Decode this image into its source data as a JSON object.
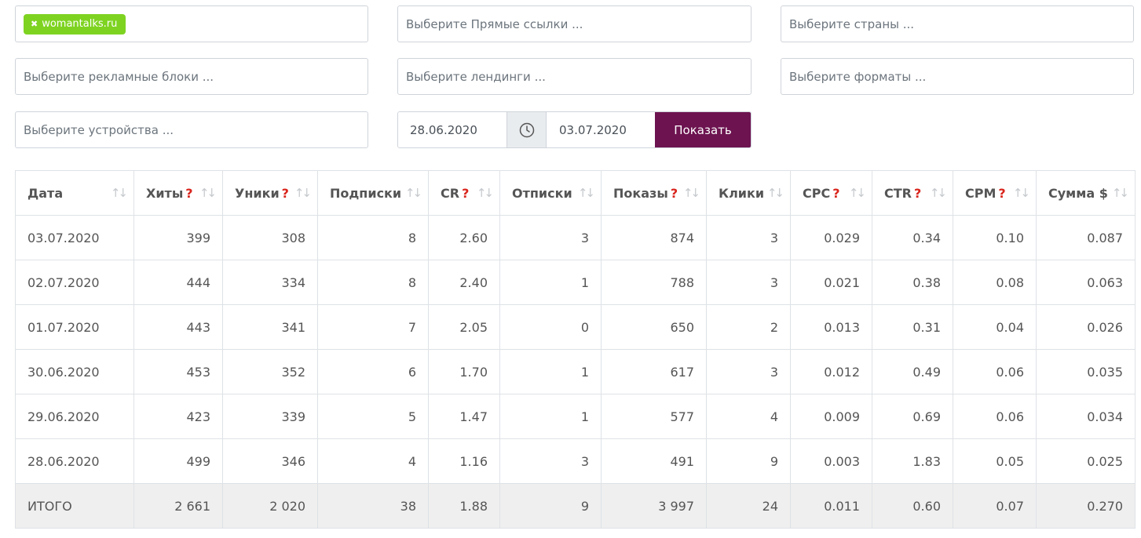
{
  "filters": {
    "site_tag": "womantalks.ru",
    "direct_links_placeholder": "Выберите Прямые ссылки ...",
    "countries_placeholder": "Выберите страны ...",
    "ad_blocks_placeholder": "Выберите рекламные блоки ...",
    "landings_placeholder": "Выберите лендинги ...",
    "formats_placeholder": "Выберите форматы ...",
    "devices_placeholder": "Выберите устройства ...",
    "date_from": "28.06.2020",
    "date_to": "03.07.2020",
    "show_label": "Показать"
  },
  "table": {
    "headers": [
      {
        "label": "Дата",
        "hint": ""
      },
      {
        "label": "Хиты",
        "hint": "?"
      },
      {
        "label": "Уники",
        "hint": "?"
      },
      {
        "label": "Подписки",
        "hint": ""
      },
      {
        "label": "CR",
        "hint": "?"
      },
      {
        "label": "Отписки",
        "hint": ""
      },
      {
        "label": "Показы",
        "hint": "?"
      },
      {
        "label": "Клики",
        "hint": ""
      },
      {
        "label": "CPC",
        "hint": "?"
      },
      {
        "label": "CTR",
        "hint": "?"
      },
      {
        "label": "CPM",
        "hint": "?"
      },
      {
        "label": "Сумма $",
        "hint": ""
      }
    ],
    "sort_icon": "sort-icon",
    "rows": [
      [
        "03.07.2020",
        "399",
        "308",
        "8",
        "2.60",
        "3",
        "874",
        "3",
        "0.029",
        "0.34",
        "0.10",
        "0.087"
      ],
      [
        "02.07.2020",
        "444",
        "334",
        "8",
        "2.40",
        "1",
        "788",
        "3",
        "0.021",
        "0.38",
        "0.08",
        "0.063"
      ],
      [
        "01.07.2020",
        "443",
        "341",
        "7",
        "2.05",
        "0",
        "650",
        "2",
        "0.013",
        "0.31",
        "0.04",
        "0.026"
      ],
      [
        "30.06.2020",
        "453",
        "352",
        "6",
        "1.70",
        "1",
        "617",
        "3",
        "0.012",
        "0.49",
        "0.06",
        "0.035"
      ],
      [
        "29.06.2020",
        "423",
        "339",
        "5",
        "1.47",
        "1",
        "577",
        "4",
        "0.009",
        "0.69",
        "0.06",
        "0.034"
      ],
      [
        "28.06.2020",
        "499",
        "346",
        "4",
        "1.16",
        "3",
        "491",
        "9",
        "0.003",
        "1.83",
        "0.05",
        "0.025"
      ]
    ],
    "total": [
      "ИТОГО",
      "2 661",
      "2 020",
      "38",
      "1.88",
      "9",
      "3 997",
      "24",
      "0.011",
      "0.60",
      "0.07",
      "0.270"
    ]
  },
  "colors": {
    "tag_bg": "#7ed321",
    "button_bg": "#6d1350",
    "hint_red": "#d9251d",
    "total_row_bg": "#efefef"
  }
}
